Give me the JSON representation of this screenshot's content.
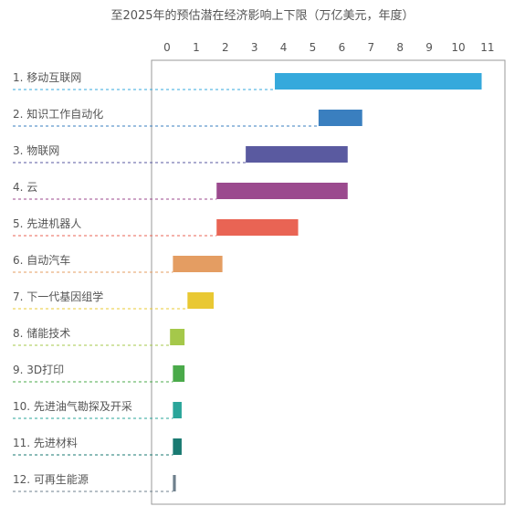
{
  "chart_data": {
    "type": "bar",
    "title": "至2025年的预估潜在经济影响上下限（万亿美元，年度）",
    "xlabel": "",
    "ylabel": "",
    "xlim": [
      0,
      11
    ],
    "x_ticks": [
      "0",
      "1",
      "2",
      "3",
      "4",
      "5",
      "6",
      "7",
      "8",
      "9",
      "10",
      "11"
    ],
    "grid": false,
    "legend": "none",
    "categories": [
      "1. 移动互联网",
      "2. 知识工作自动化",
      "3. 物联网",
      "4. 云",
      "5. 先进机器人",
      "6. 自动汽车",
      "7. 下一代基因组学",
      "8. 储能技术",
      "9. 3D打印",
      "10. 先进油气勘探及开采",
      "11. 先进材料",
      "12. 可再生能源"
    ],
    "series": [
      {
        "lower": [
          3.7,
          5.2,
          2.7,
          1.7,
          1.7,
          0.2,
          0.7,
          0.1,
          0.2,
          0.2,
          0.2,
          0.2
        ],
        "upper": [
          10.8,
          6.7,
          6.2,
          6.2,
          4.5,
          1.9,
          1.6,
          0.6,
          0.6,
          0.5,
          0.5,
          0.3
        ]
      }
    ],
    "colors": [
      "#35a9dc",
      "#3a7fbf",
      "#5a5aa0",
      "#9b4a8e",
      "#e96454",
      "#e49d62",
      "#e9c833",
      "#a5c84a",
      "#4aaa4a",
      "#2aa59a",
      "#1a7a72",
      "#6e7f8c"
    ]
  }
}
